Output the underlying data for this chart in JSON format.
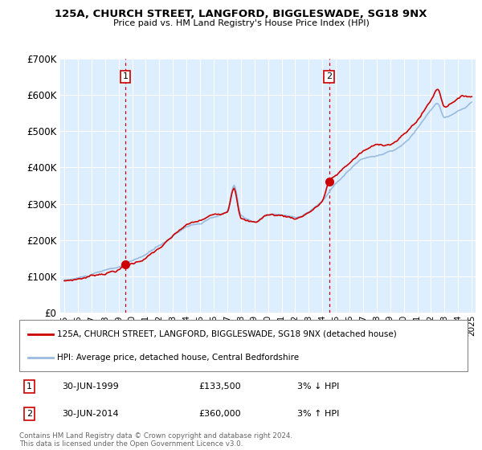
{
  "title": "125A, CHURCH STREET, LANGFORD, BIGGLESWADE, SG18 9NX",
  "subtitle": "Price paid vs. HM Land Registry's House Price Index (HPI)",
  "legend_line1": "125A, CHURCH STREET, LANGFORD, BIGGLESWADE, SG18 9NX (detached house)",
  "legend_line2": "HPI: Average price, detached house, Central Bedfordshire",
  "footnote": "Contains HM Land Registry data © Crown copyright and database right 2024.\nThis data is licensed under the Open Government Licence v3.0.",
  "annotation1_date": "30-JUN-1999",
  "annotation1_price": "£133,500",
  "annotation1_hpi": "3% ↓ HPI",
  "annotation2_date": "30-JUN-2014",
  "annotation2_price": "£360,000",
  "annotation2_hpi": "3% ↑ HPI",
  "price_paid_color": "#cc0000",
  "hpi_color": "#99bbdd",
  "bg_color": "#ddeeff",
  "grid_color": "#ffffff",
  "vline_color": "#cc0000",
  "marker1_year": 1999.5,
  "marker2_year": 2014.5,
  "marker1_price": 133500,
  "marker2_price": 360000,
  "ylim": [
    0,
    700000
  ],
  "yticks": [
    0,
    100000,
    200000,
    300000,
    400000,
    500000,
    600000,
    700000
  ],
  "xlim_start": 1994.7,
  "xlim_end": 2025.3
}
